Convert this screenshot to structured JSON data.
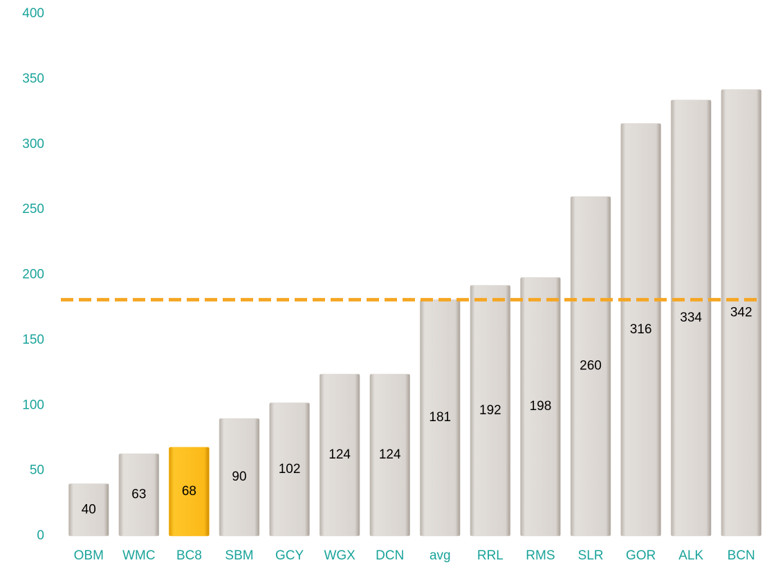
{
  "chart_data": {
    "type": "bar",
    "categories": [
      "OBM",
      "WMC",
      "BC8",
      "SBM",
      "GCY",
      "WGX",
      "DCN",
      "avg",
      "RRL",
      "RMS",
      "SLR",
      "GOR",
      "ALK",
      "BCN"
    ],
    "values": [
      40,
      63,
      68,
      90,
      102,
      124,
      124,
      181,
      192,
      198,
      260,
      316,
      334,
      342
    ],
    "colors": [
      "#d9d4cf",
      "#d9d4cf",
      "#fbb917",
      "#d9d4cf",
      "#d9d4cf",
      "#d9d4cf",
      "#d9d4cf",
      "#d9d4cf",
      "#d9d4cf",
      "#d9d4cf",
      "#d9d4cf",
      "#d9d4cf",
      "#d9d4cf",
      "#d9d4cf"
    ],
    "ylim": [
      0,
      400
    ],
    "yticks": [
      0,
      50,
      100,
      150,
      200,
      250,
      300,
      350,
      400
    ],
    "grid": false,
    "reference_line": {
      "value": 181,
      "color": "#f5a623"
    }
  }
}
